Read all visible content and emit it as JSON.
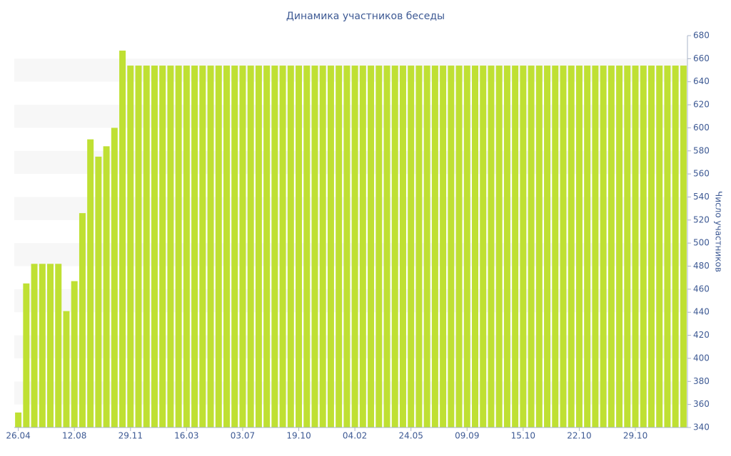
{
  "chart_data": {
    "type": "bar",
    "title": "Динамика участников беседы",
    "y_label": "Число участников",
    "categories": [
      "26.04",
      null,
      null,
      null,
      null,
      null,
      null,
      "12.08",
      null,
      null,
      null,
      null,
      null,
      null,
      "29.11",
      null,
      null,
      null,
      null,
      null,
      null,
      "16.03",
      null,
      null,
      null,
      null,
      null,
      null,
      "03.07",
      null,
      null,
      null,
      null,
      null,
      null,
      "19.10",
      null,
      null,
      null,
      null,
      null,
      null,
      "04.02",
      null,
      null,
      null,
      null,
      null,
      null,
      "24.05",
      null,
      null,
      null,
      null,
      null,
      null,
      "09.09",
      null,
      null,
      null,
      null,
      null,
      null,
      "15.10",
      null,
      null,
      null,
      null,
      null,
      null,
      "22.10",
      null,
      null,
      null,
      null,
      null,
      null,
      "29.10",
      null,
      null,
      null,
      null,
      null,
      null
    ],
    "values": [
      353,
      465,
      482,
      482,
      482,
      482,
      441,
      467,
      526,
      590,
      575,
      584,
      600,
      667,
      654,
      654,
      654,
      654,
      654,
      654,
      654,
      654,
      654,
      654,
      654,
      654,
      654,
      654,
      654,
      654,
      654,
      654,
      654,
      654,
      654,
      654,
      654,
      654,
      654,
      654,
      654,
      654,
      654,
      654,
      654,
      654,
      654,
      654,
      654,
      654,
      654,
      654,
      654,
      654,
      654,
      654,
      654,
      654,
      654,
      654,
      654,
      654,
      654,
      654,
      654,
      654,
      654,
      654,
      654,
      654,
      654,
      654,
      654,
      654,
      654,
      654,
      654,
      654,
      654,
      654,
      654,
      654,
      654,
      654
    ],
    "color": "#bfe033",
    "ylim": [
      340,
      680
    ],
    "yticks": [
      340,
      360,
      380,
      400,
      420,
      440,
      460,
      480,
      500,
      520,
      540,
      560,
      580,
      600,
      620,
      640,
      660,
      680
    ],
    "y_axis_side": "right",
    "striped_bands": true
  }
}
